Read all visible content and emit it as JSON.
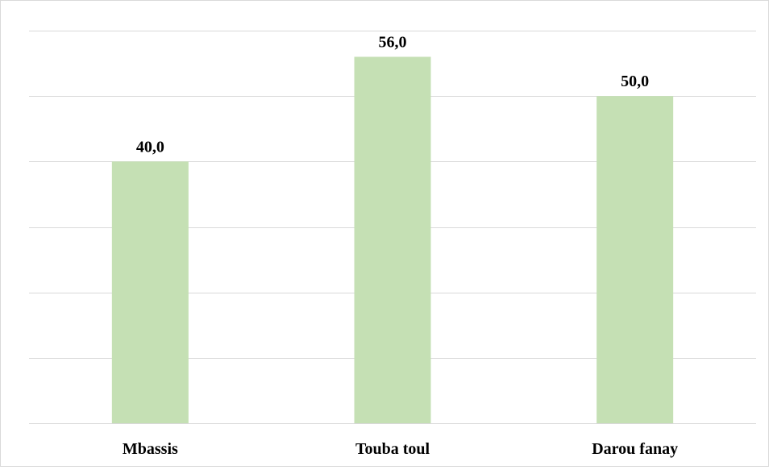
{
  "chart_data": {
    "type": "bar",
    "categories": [
      "Mbassis",
      "Touba toul",
      "Darou fanay"
    ],
    "values": [
      40.0,
      56.0,
      50.0
    ],
    "data_labels": [
      "40,0",
      "56,0",
      "50,0"
    ],
    "title": "",
    "xlabel": "",
    "ylabel": "",
    "ylim": [
      0,
      60
    ],
    "y_gridline_step": 10,
    "grid": true,
    "legend": "none",
    "colors": {
      "bar": "#c5e0b4",
      "gridline": "#d9d9d9",
      "axis": "#d9d9d9",
      "text": "#000000",
      "border": "#d9d9d9"
    }
  }
}
